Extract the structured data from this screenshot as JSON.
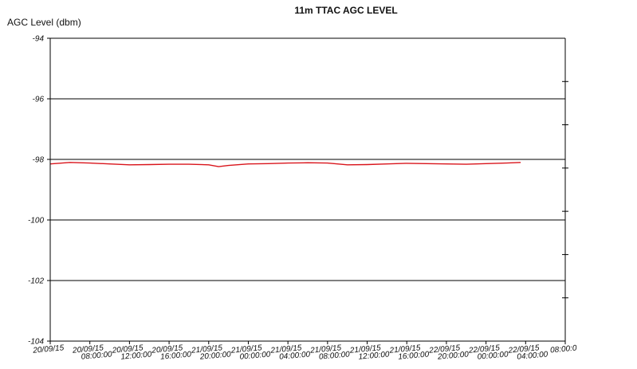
{
  "chart_data": {
    "type": "line",
    "title": "11m TTAC AGC LEVEL",
    "xlabel": "",
    "ylabel": "AGC Level (dbm)",
    "ylim": [
      -104,
      -94
    ],
    "yticks": [
      -94,
      -96,
      -98,
      -100,
      -102,
      -104
    ],
    "grid": true,
    "legend": "none",
    "colors": {
      "series": "#d9141b",
      "axis": "#000000"
    },
    "x_tick_labels": [
      [
        "20/09/15",
        ""
      ],
      [
        "20/09/15",
        "08:00:00"
      ],
      [
        "20/09/15",
        "12:00:00"
      ],
      [
        "20/09/15",
        "16:00:00"
      ],
      [
        "21/09/15",
        "20:00:00"
      ],
      [
        "21/09/15",
        "00:00:00"
      ],
      [
        "21/09/15",
        "04:00:00"
      ],
      [
        "21/09/15",
        "08:00:00"
      ],
      [
        "21/09/15",
        "12:00:00"
      ],
      [
        "21/09/15",
        "16:00:00"
      ],
      [
        "22/09/15",
        "20:00:00"
      ],
      [
        "22/09/15",
        "00:00:00"
      ],
      [
        "22/09/15",
        "04:00:00"
      ],
      [
        "08:00:0",
        ""
      ]
    ],
    "series": [
      {
        "x": [
          "20/09/15 04:00",
          "20/09/15 06:00",
          "20/09/15 08:00",
          "20/09/15 10:00",
          "20/09/15 12:00",
          "20/09/15 14:00",
          "20/09/15 16:00",
          "20/09/15 18:00",
          "20/09/15 20:00",
          "20/09/15 21:00",
          "20/09/15 22:00",
          "21/09/15 00:00",
          "21/09/15 02:00",
          "21/09/15 04:00",
          "21/09/15 06:00",
          "21/09/15 08:00",
          "21/09/15 10:00",
          "21/09/15 12:00",
          "21/09/15 14:00",
          "21/09/15 16:00",
          "21/09/15 18:00",
          "21/09/15 20:00",
          "21/09/15 22:00",
          "22/09/15 00:00",
          "22/09/15 02:00",
          "22/09/15 03:30"
        ],
        "values": [
          -98.15,
          -98.1,
          -98.12,
          -98.15,
          -98.18,
          -98.17,
          -98.16,
          -98.16,
          -98.18,
          -98.24,
          -98.2,
          -98.15,
          -98.14,
          -98.12,
          -98.11,
          -98.12,
          -98.18,
          -98.17,
          -98.15,
          -98.13,
          -98.14,
          -98.15,
          -98.16,
          -98.14,
          -98.12,
          -98.1
        ]
      }
    ]
  }
}
